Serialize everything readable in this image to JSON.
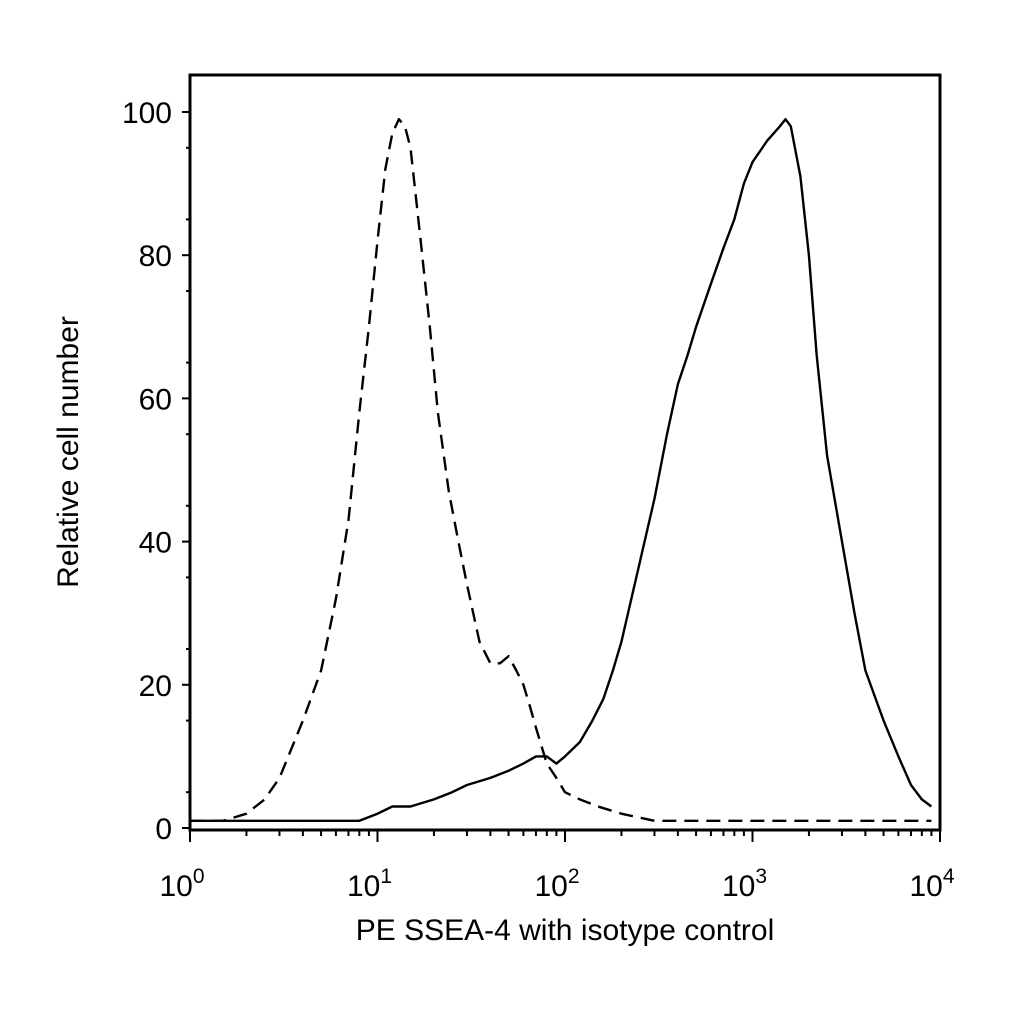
{
  "chart_data": {
    "type": "line",
    "title": "",
    "xlabel": "PE SSEA-4 with isotype control",
    "ylabel": "Relative cell number",
    "x_scale": "log",
    "xlim": [
      1,
      10000
    ],
    "ylim": [
      0,
      105
    ],
    "x_ticks": [
      {
        "base": "10",
        "exp": "0",
        "value": 1
      },
      {
        "base": "10",
        "exp": "1",
        "value": 10
      },
      {
        "base": "10",
        "exp": "2",
        "value": 100
      },
      {
        "base": "10",
        "exp": "3",
        "value": 1000
      },
      {
        "base": "10",
        "exp": "4",
        "value": 10000
      }
    ],
    "y_ticks": [
      "0",
      "20",
      "40",
      "60",
      "80",
      "100"
    ],
    "grid": false,
    "legend": "none",
    "series": [
      {
        "style": "dashed",
        "color": "#000000",
        "x": [
          1,
          1.5,
          2,
          2.5,
          3,
          4,
          5,
          6,
          7,
          8,
          9,
          10,
          11,
          12,
          13,
          14,
          15,
          17,
          19,
          21,
          24,
          27,
          30,
          35,
          40,
          45,
          50,
          55,
          60,
          65,
          70,
          80,
          90,
          100,
          120,
          150,
          200,
          300,
          400,
          600,
          1000,
          2000,
          5000,
          9000
        ],
        "y": [
          1,
          1,
          2,
          4,
          7,
          15,
          22,
          32,
          43,
          58,
          70,
          82,
          92,
          97,
          99,
          98,
          95,
          82,
          70,
          58,
          47,
          40,
          34,
          26,
          23,
          23,
          24,
          22,
          20,
          17,
          14,
          9,
          7,
          5,
          4,
          3,
          2,
          1,
          1,
          1,
          1,
          1,
          1,
          1
        ]
      },
      {
        "style": "solid",
        "color": "#000000",
        "x": [
          1,
          1.5,
          2,
          3,
          5,
          7,
          8,
          10,
          12,
          15,
          20,
          25,
          30,
          40,
          50,
          60,
          70,
          80,
          90,
          100,
          120,
          140,
          160,
          180,
          200,
          250,
          300,
          350,
          400,
          450,
          500,
          600,
          700,
          800,
          900,
          1000,
          1200,
          1400,
          1500,
          1600,
          1800,
          2000,
          2200,
          2500,
          3000,
          3500,
          4000,
          5000,
          6000,
          7000,
          8000,
          9000
        ],
        "y": [
          1,
          1,
          1,
          1,
          1,
          1,
          1,
          2,
          3,
          3,
          4,
          5,
          6,
          7,
          8,
          9,
          10,
          10,
          9,
          10,
          12,
          15,
          18,
          22,
          26,
          37,
          46,
          55,
          62,
          66,
          70,
          76,
          81,
          85,
          90,
          93,
          96,
          98,
          99,
          98,
          91,
          80,
          66,
          52,
          40,
          30,
          22,
          15,
          10,
          6,
          4,
          3
        ]
      }
    ]
  }
}
